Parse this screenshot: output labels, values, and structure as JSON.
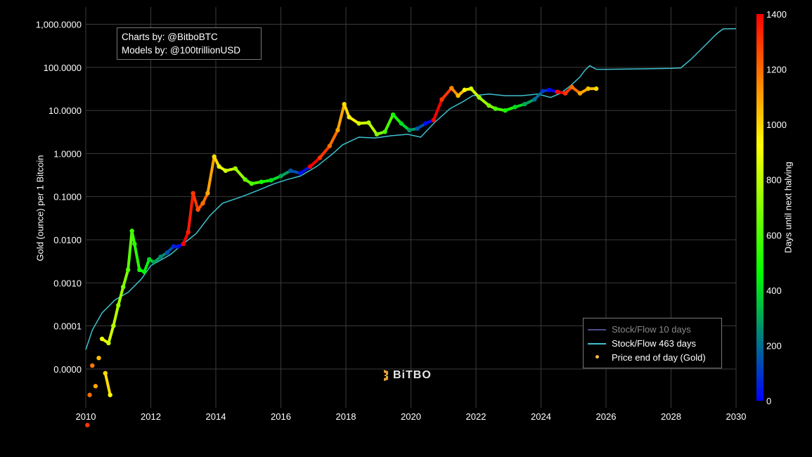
{
  "credits": {
    "line1": "Charts by: @BitboBTC",
    "line2": "Models by: @100trillionUSD"
  },
  "watermark": {
    "text": "BiTBO",
    "icon": "bitbo-logo-icon"
  },
  "legend": {
    "items": [
      {
        "label": "Stock/Flow 10 days",
        "color": "#4a4f8c",
        "kind": "line"
      },
      {
        "label": "Stock/Flow 463 days",
        "color": "#3fc1d0",
        "kind": "line"
      },
      {
        "label": "Price end of day (Gold)",
        "color": "#f5b642",
        "kind": "dot"
      }
    ]
  },
  "chart_data": {
    "type": "scatter",
    "title": "",
    "xlabel": "",
    "ylabel": "Gold (ounce) per 1 Bitcoin",
    "y_scale": "log",
    "xlim": [
      2010,
      2030
    ],
    "ylim_log10": [
      -5.9,
      3.4
    ],
    "x_ticks": [
      "2010",
      "2012",
      "2014",
      "2016",
      "2018",
      "2020",
      "2022",
      "2024",
      "2026",
      "2028",
      "2030"
    ],
    "y_ticks": [
      "1,000.0000",
      "100.0000",
      "10.0000",
      "1.0000",
      "0.1000",
      "0.0100",
      "0.0010",
      "0.0001",
      "0.0000"
    ],
    "grid": true,
    "legend_placement": "bottom-right",
    "colorbar": {
      "label": "Days until next halving",
      "min": 0,
      "max": 1400,
      "ticks": [
        "0",
        "200",
        "400",
        "600",
        "800",
        "1000",
        "1200",
        "1400"
      ],
      "colors": [
        "#0000ff",
        "#00ff00",
        "#ffff00",
        "#ff0000"
      ]
    },
    "series": [
      {
        "name": "Stock/Flow 463 days",
        "color": "#3fc1d0",
        "x": [
          2010.0,
          2010.2,
          2010.5,
          2010.9,
          2011.3,
          2011.7,
          2012.0,
          2012.6,
          2012.9,
          2013.4,
          2013.8,
          2014.2,
          2014.8,
          2015.3,
          2015.8,
          2016.2,
          2016.6,
          2017.1,
          2017.6,
          2017.9,
          2018.4,
          2018.9,
          2019.4,
          2019.9,
          2020.3,
          2020.7,
          2021.2,
          2021.6,
          2021.9,
          2022.4,
          2022.9,
          2023.4,
          2023.9,
          2024.3,
          2024.6,
          2024.9,
          2025.2,
          2025.35,
          2025.5,
          2025.7,
          2026.0,
          2027.0,
          2028.0,
          2028.3,
          2028.6,
          2029.0,
          2029.4,
          2029.6,
          2030.0
        ],
        "y": [
          2.8e-05,
          8e-05,
          0.0002,
          0.0004,
          0.0006,
          0.0012,
          0.0025,
          0.0045,
          0.007,
          0.014,
          0.035,
          0.07,
          0.1,
          0.14,
          0.2,
          0.25,
          0.3,
          0.5,
          1.0,
          1.6,
          2.4,
          2.3,
          2.6,
          2.8,
          2.4,
          5.0,
          11,
          16,
          22,
          24,
          22,
          22,
          24,
          20,
          25,
          37,
          60,
          85,
          110,
          90,
          90,
          92,
          95,
          97,
          150,
          300,
          600,
          780,
          790
        ]
      },
      {
        "name": "Price end of day (Gold)",
        "color_mode": "days_until_next_halving",
        "x": [
          2010.05,
          2010.12,
          2010.2,
          2010.3,
          2010.4,
          2010.6,
          2010.75,
          2010.5,
          2010.7,
          2010.85,
          2011.0,
          2011.15,
          2011.3,
          2011.42,
          2011.5,
          2011.65,
          2011.8,
          2011.95,
          2012.1,
          2012.3,
          2012.5,
          2012.7,
          2012.85,
          2013.0,
          2013.15,
          2013.3,
          2013.45,
          2013.6,
          2013.75,
          2013.95,
          2014.1,
          2014.3,
          2014.6,
          2014.9,
          2015.1,
          2015.4,
          2015.7,
          2016.0,
          2016.3,
          2016.6,
          2016.9,
          2017.2,
          2017.5,
          2017.75,
          2017.95,
          2018.1,
          2018.4,
          2018.7,
          2018.95,
          2019.2,
          2019.45,
          2019.7,
          2019.95,
          2020.2,
          2020.45,
          2020.7,
          2020.95,
          2021.25,
          2021.45,
          2021.65,
          2021.85,
          2022.1,
          2022.4,
          2022.6,
          2022.9,
          2023.2,
          2023.5,
          2023.8,
          2024.05,
          2024.25,
          2024.5,
          2024.75,
          2024.95,
          2025.2,
          2025.45,
          2025.7
        ],
        "y": [
          5e-07,
          2.5e-06,
          1.2e-05,
          4e-06,
          1.8e-05,
          8e-06,
          2.5e-06,
          5e-05,
          4e-05,
          0.0001,
          0.0003,
          0.0008,
          0.002,
          0.016,
          0.008,
          0.002,
          0.0018,
          0.0035,
          0.003,
          0.004,
          0.005,
          0.007,
          0.007,
          0.008,
          0.015,
          0.12,
          0.05,
          0.07,
          0.12,
          0.85,
          0.5,
          0.4,
          0.45,
          0.25,
          0.2,
          0.22,
          0.24,
          0.3,
          0.4,
          0.35,
          0.5,
          0.8,
          1.5,
          3.5,
          14,
          7,
          5,
          5.2,
          2.8,
          3.2,
          8,
          5,
          3.5,
          3.8,
          5,
          6,
          18,
          33,
          22,
          30,
          32,
          20,
          13,
          11,
          10,
          12,
          14,
          18,
          28,
          30,
          27,
          25,
          35,
          25,
          32,
          32
        ],
        "days": [
          1300,
          1200,
          1180,
          1100,
          1050,
          1000,
          930,
          900,
          850,
          800,
          750,
          700,
          630,
          580,
          540,
          500,
          450,
          400,
          300,
          250,
          150,
          60,
          20,
          1400,
          1350,
          1300,
          1250,
          1200,
          1100,
          1000,
          900,
          850,
          750,
          650,
          600,
          500,
          400,
          300,
          150,
          30,
          1400,
          1300,
          1200,
          1100,
          1000,
          950,
          850,
          800,
          700,
          600,
          500,
          400,
          280,
          150,
          20,
          1400,
          1300,
          1150,
          1050,
          950,
          850,
          750,
          700,
          600,
          500,
          400,
          300,
          200,
          100,
          10,
          1400,
          1300,
          1200,
          1100,
          1050,
          1000
        ]
      }
    ]
  }
}
